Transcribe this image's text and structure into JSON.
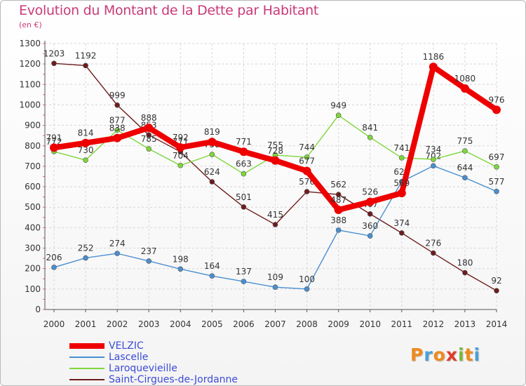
{
  "header": {
    "title": "Evolution du Montant de la Dette par Habitant",
    "unit": "(en €)"
  },
  "logo": {
    "letters": [
      "P",
      "r",
      "o",
      "x",
      "i",
      "t",
      "i"
    ],
    "colors": [
      "#f08a1c",
      "#4aa0d8",
      "#f08a1c",
      "#e23a2c",
      "#7ab83a",
      "#f08a1c",
      "#4aa0d8"
    ]
  },
  "chart_data": {
    "type": "line",
    "title": "Evolution du Montant de la Dette par Habitant",
    "ylabel": "(en €)",
    "xlabel": "",
    "x": [
      "2000",
      "2001",
      "2002",
      "2003",
      "2004",
      "2005",
      "2006",
      "2007",
      "2008",
      "2009",
      "2010",
      "2011",
      "2012",
      "2013",
      "2014"
    ],
    "ylim": [
      0,
      1300
    ],
    "yticks": [
      0,
      100,
      200,
      300,
      400,
      500,
      600,
      700,
      800,
      900,
      1000,
      1100,
      1200,
      1300
    ],
    "grid": true,
    "legend": "bottom-left",
    "series": [
      {
        "name": "Saint-Cirgues-de-Jordanne",
        "color": "#6e1c1c",
        "values": [
          1203,
          1192,
          999,
          853,
          771,
          624,
          501,
          415,
          576,
          562,
          467,
          374,
          276,
          180,
          92
        ],
        "labels": [
          "1203",
          "1192",
          "999",
          "853",
          "771",
          "624",
          "501",
          "415",
          "576",
          "562",
          "467",
          "374",
          "276",
          "180",
          "92"
        ]
      },
      {
        "name": "Lascelle",
        "color": "#4a8fd0",
        "values": [
          206,
          252,
          274,
          237,
          198,
          164,
          137,
          109,
          100,
          388,
          360,
          625,
          702,
          644,
          577
        ],
        "labels": [
          "206",
          "252",
          "274",
          "237",
          "198",
          "164",
          "137",
          "109",
          "100",
          "388",
          "360",
          "625",
          "702",
          "644",
          "577"
        ]
      },
      {
        "name": "Laroquevieille",
        "color": "#7fd63b",
        "values": [
          772,
          730,
          877,
          785,
          704,
          758,
          663,
          755,
          744,
          949,
          841,
          741,
          734,
          775,
          697
        ],
        "labels": [
          "772",
          "730",
          "877",
          "785",
          "704",
          "758",
          "663",
          "755",
          "744",
          "949",
          "841",
          "741",
          "734",
          "775",
          "697"
        ]
      },
      {
        "name": "VELZIC",
        "color": "#ee0000",
        "values": [
          791,
          814,
          838,
          888,
          792,
          819,
          771,
          728,
          677,
          487,
          526,
          569,
          1186,
          1080,
          976
        ],
        "labels": [
          "791",
          "814",
          "838",
          "888",
          "792",
          "819",
          "771",
          "728",
          "677",
          "487",
          "526",
          "569",
          "1186",
          "1080",
          "976"
        ]
      }
    ]
  },
  "legend": {
    "items": [
      {
        "label": "VELZIC",
        "color": "#ee0000",
        "thickness": 8
      },
      {
        "label": "Lascelle",
        "color": "#4a8fd0",
        "thickness": 2
      },
      {
        "label": "Laroquevieille",
        "color": "#7fd63b",
        "thickness": 2
      },
      {
        "label": "Saint-Cirgues-de-Jordanne",
        "color": "#6e1c1c",
        "thickness": 2
      }
    ]
  }
}
